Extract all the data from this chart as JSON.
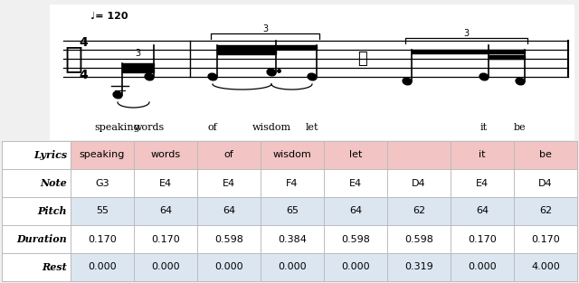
{
  "table_rows": [
    "Lyrics",
    "Note",
    "Pitch",
    "Duration",
    "Rest"
  ],
  "lyrics_cols": [
    "speaking",
    "words",
    "of",
    "wisdom",
    "let",
    "it",
    "be"
  ],
  "note_values": [
    "G3",
    "E4",
    "E4",
    "F4",
    "E4",
    "D4",
    "E4",
    "D4"
  ],
  "pitch_values": [
    "55",
    "64",
    "64",
    "65",
    "64",
    "62",
    "64",
    "62"
  ],
  "duration_values": [
    "0.170",
    "0.170",
    "0.598",
    "0.384",
    "0.598",
    "0.598",
    "0.170",
    "0.170"
  ],
  "rest_values": [
    "0.000",
    "0.000",
    "0.000",
    "0.000",
    "0.000",
    "0.319",
    "0.000",
    "4.000"
  ],
  "lyrics_8": [
    "speaking",
    "words",
    "of",
    "wisdom",
    "let",
    "",
    "it",
    "be"
  ],
  "row_colors": [
    "#f2c4c4",
    "#ffffff",
    "#dce6f1",
    "#ffffff",
    "#dce6f1"
  ],
  "label_color": "#000000",
  "grid_color": "#bbbbbb",
  "bg_color": "#f0f0f0",
  "white": "#ffffff",
  "tempo": "= 120",
  "time_sig": "4/4"
}
